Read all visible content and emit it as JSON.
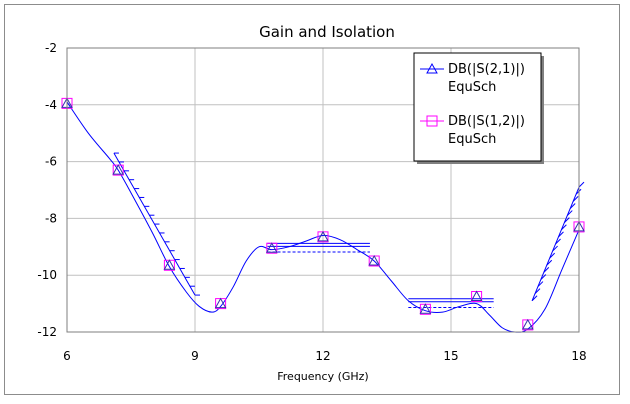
{
  "chart_data": {
    "type": "line",
    "title": "Gain and Isolation",
    "xlabel": "Frequency (GHz)",
    "ylabel": "",
    "xlim": [
      6,
      18
    ],
    "ylim": [
      -12,
      -2
    ],
    "xticks": [
      6,
      9,
      12,
      15,
      18
    ],
    "yticks": [
      -2,
      -4,
      -6,
      -8,
      -10,
      -12
    ],
    "grid": true,
    "legend_position": "top-right",
    "series": [
      {
        "name": "DB(|S(2,1)|)",
        "sub": "EquSch",
        "color": "#0000ff",
        "marker": "triangle",
        "x": [
          6.0,
          6.5,
          7.0,
          7.2,
          7.5,
          8.0,
          8.4,
          8.8,
          9.1,
          9.4,
          9.6,
          9.9,
          10.2,
          10.5,
          10.8,
          11.2,
          11.6,
          12.0,
          12.4,
          12.8,
          13.2,
          13.6,
          14.0,
          14.4,
          14.8,
          15.2,
          15.6,
          15.9,
          16.2,
          16.5,
          16.8,
          17.2,
          17.6,
          18.0
        ],
        "y": [
          -3.9,
          -5.0,
          -5.9,
          -6.3,
          -7.1,
          -8.5,
          -9.7,
          -10.6,
          -11.1,
          -11.3,
          -11.1,
          -10.4,
          -9.5,
          -9.0,
          -9.1,
          -9.0,
          -8.8,
          -8.6,
          -8.75,
          -9.1,
          -9.5,
          -10.2,
          -10.9,
          -11.25,
          -11.3,
          -11.1,
          -11.0,
          -11.4,
          -11.85,
          -12.0,
          -11.9,
          -11.2,
          -9.8,
          -8.4
        ],
        "marker_x": [
          6.0,
          7.2,
          8.4,
          9.6,
          10.8,
          12.0,
          13.2,
          14.4,
          15.6,
          16.8,
          18.0
        ],
        "marker_y": [
          -3.95,
          -6.3,
          -9.65,
          -11.0,
          -9.05,
          -8.65,
          -9.5,
          -11.2,
          -10.75,
          -11.75,
          -8.3
        ]
      },
      {
        "name": "DB(|S(1,2)|)",
        "sub": "EquSch",
        "color": "#ff00ff",
        "marker": "square",
        "x": [
          6.0,
          7.2,
          8.4,
          9.6,
          10.8,
          12.0,
          13.2,
          14.4,
          15.6,
          16.8,
          18.0
        ],
        "y": [
          -3.95,
          -6.3,
          -9.65,
          -11.0,
          -9.05,
          -8.65,
          -9.5,
          -11.2,
          -10.75,
          -11.75,
          -8.3
        ]
      }
    ],
    "goals": [
      {
        "type": "slope",
        "x": [
          7.1,
          9.0
        ],
        "y": [
          -5.7,
          -10.7
        ],
        "dir": "below"
      },
      {
        "type": "flat",
        "x": [
          10.7,
          13.1
        ],
        "y": [
          -8.95,
          -9.15
        ],
        "dir": "band"
      },
      {
        "type": "flat",
        "x": [
          14.0,
          16.0
        ],
        "y": [
          -10.9,
          -11.1
        ],
        "dir": "band"
      },
      {
        "type": "slope",
        "x": [
          16.9,
          18.0
        ],
        "y": [
          -10.9,
          -6.9
        ],
        "dir": "above"
      }
    ]
  }
}
